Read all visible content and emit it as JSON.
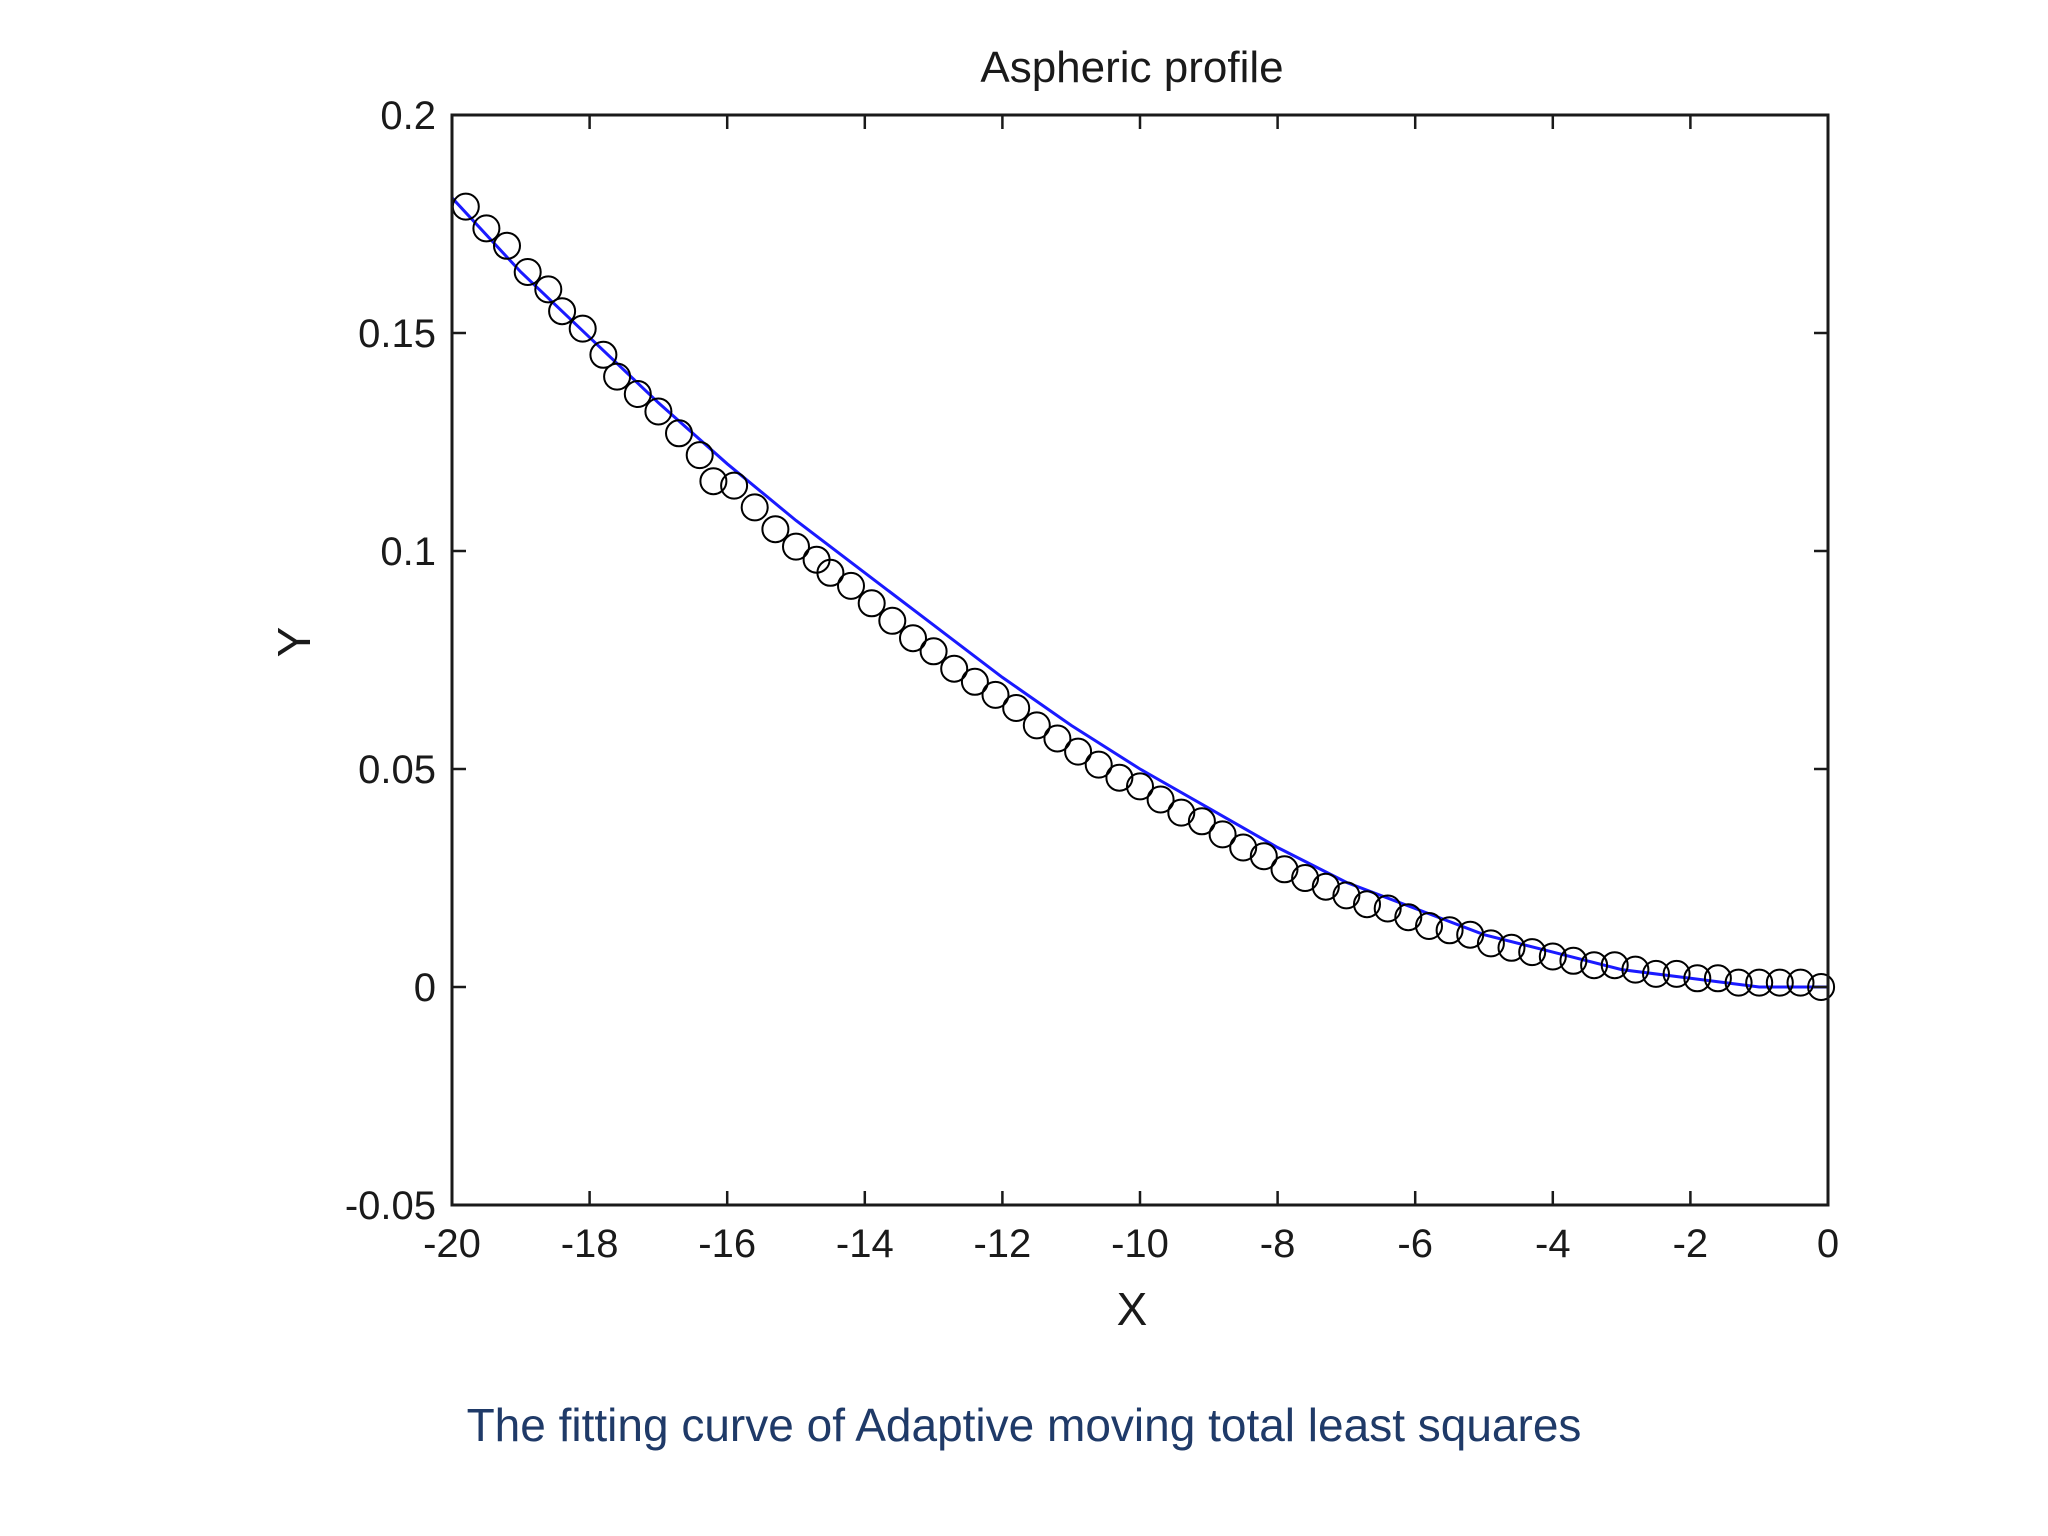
{
  "caption": "The fitting curve of Adaptive moving total least squares",
  "chart_data": {
    "type": "scatter",
    "title": "Aspheric profile",
    "xlabel": "X",
    "ylabel": "Y",
    "xlim": [
      -20,
      0
    ],
    "ylim": [
      -0.05,
      0.2
    ],
    "xticks": [
      -20,
      -18,
      -16,
      -14,
      -12,
      -10,
      -8,
      -6,
      -4,
      -2,
      0
    ],
    "yticks": [
      -0.05,
      0,
      0.05,
      0.1,
      0.15,
      0.2
    ],
    "ytick_labels": [
      "-0.05",
      "0",
      "0.05",
      "0.1",
      "0.15",
      "0.2"
    ],
    "grid": false,
    "colors": {
      "fit": "#1a1aff",
      "markers": "#000000",
      "caption": "#1f3a68"
    },
    "fit_curve": {
      "x": [
        -20,
        -19,
        -18,
        -17,
        -16,
        -15,
        -14,
        -13,
        -12,
        -11,
        -10,
        -9,
        -8,
        -7,
        -6,
        -5,
        -4,
        -3,
        -2,
        -1,
        0
      ],
      "y": [
        0.181,
        0.164,
        0.149,
        0.134,
        0.12,
        0.107,
        0.095,
        0.083,
        0.071,
        0.06,
        0.05,
        0.041,
        0.032,
        0.024,
        0.018,
        0.012,
        0.008,
        0.004,
        0.002,
        0.0,
        0.0
      ]
    },
    "series": [
      {
        "x": [
          -19.8,
          -19.5,
          -19.2,
          -18.9,
          -18.6,
          -18.4,
          -18.1,
          -17.8,
          -17.6,
          -17.3,
          -17.0,
          -16.7,
          -16.4,
          -16.2,
          -15.9,
          -15.6,
          -15.3,
          -15.0,
          -14.7,
          -14.5,
          -14.2,
          -13.9,
          -13.6,
          -13.3,
          -13.0,
          -12.7,
          -12.4,
          -12.1,
          -11.8,
          -11.5,
          -11.2,
          -10.9,
          -10.6,
          -10.3,
          -10.0,
          -9.7,
          -9.4,
          -9.1,
          -8.8,
          -8.5,
          -8.2,
          -7.9,
          -7.6,
          -7.3,
          -7.0,
          -6.7,
          -6.4,
          -6.1,
          -5.8,
          -5.5,
          -5.2,
          -4.9,
          -4.6,
          -4.3,
          -4.0,
          -3.7,
          -3.4,
          -3.1,
          -2.8,
          -2.5,
          -2.2,
          -1.9,
          -1.6,
          -1.3,
          -1.0,
          -0.7,
          -0.4,
          -0.1
        ],
        "y": [
          0.179,
          0.174,
          0.17,
          0.164,
          0.16,
          0.155,
          0.151,
          0.145,
          0.14,
          0.136,
          0.132,
          0.127,
          0.122,
          0.116,
          0.115,
          0.11,
          0.105,
          0.101,
          0.098,
          0.095,
          0.092,
          0.088,
          0.084,
          0.08,
          0.077,
          0.073,
          0.07,
          0.067,
          0.064,
          0.06,
          0.057,
          0.054,
          0.051,
          0.048,
          0.046,
          0.043,
          0.04,
          0.038,
          0.035,
          0.032,
          0.03,
          0.027,
          0.025,
          0.023,
          0.021,
          0.019,
          0.018,
          0.016,
          0.014,
          0.013,
          0.012,
          0.01,
          0.009,
          0.008,
          0.007,
          0.006,
          0.005,
          0.005,
          0.004,
          0.003,
          0.003,
          0.002,
          0.002,
          0.001,
          0.001,
          0.001,
          0.001,
          0.0
        ]
      }
    ]
  }
}
